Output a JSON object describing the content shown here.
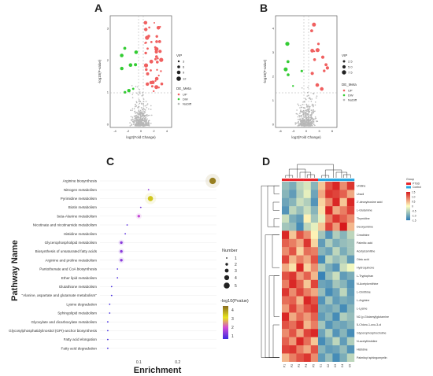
{
  "figure": {
    "panel_labels": [
      "A",
      "B",
      "C",
      "D"
    ]
  },
  "volcano_a": {
    "xlabel": "log2(Fold Change)",
    "ylabel": "-log10(P-value)",
    "x_ticks": [
      "-4",
      "-2",
      "0",
      "2",
      "4"
    ],
    "y_ticks": [
      "0",
      "1",
      "2",
      "3"
    ],
    "legend": {
      "vip_title": "VIP",
      "vip_sizes": [
        "3",
        "6",
        "9",
        "12"
      ],
      "meta_title": "DE_Meta",
      "meta_items": [
        "UP",
        "DW",
        "NoDiff"
      ]
    },
    "colors": {
      "up": "#f06060",
      "down": "#33cc33",
      "nodiff": "#b8b8b8",
      "threshold": "#aaaaaa"
    }
  },
  "volcano_b": {
    "xlabel": "log2(Fold Change)",
    "ylabel": "-log10(P-value)",
    "x_ticks": [
      "-6",
      "-3",
      "0",
      "3",
      "6"
    ],
    "y_ticks": [
      "0",
      "1",
      "2",
      "3",
      "4"
    ],
    "legend": {
      "vip_title": "VIP",
      "vip_sizes": [
        "2.5",
        "5.0",
        "7.5"
      ],
      "meta_title": "DE_Meta",
      "meta_items": [
        "UP",
        "DW",
        "NoDiff"
      ]
    }
  },
  "pathway_chart": {
    "ylabel": "Pathway Name",
    "xlabel": "Enrichment",
    "x_ticks": [
      "0.1",
      "0.2"
    ],
    "legend_number_title": "Number",
    "legend_numbers": [
      "1",
      "2",
      "3",
      "4",
      "5"
    ],
    "legend_color_title": "-log10(Pvalue)",
    "legend_color_ticks": [
      "4",
      "3",
      "2",
      "1"
    ]
  },
  "chart_data": {
    "type": "scatter",
    "xlabel": "Enrichment",
    "ylabel": "Pathway Name",
    "xlim": [
      0,
      0.3
    ],
    "categories": [
      "Arginine biosynthesis",
      "Nitrogen metabolism",
      "Pyrimidine metabolism",
      "Biotin metabolism",
      "beta-Alanine metabolism",
      "Nicotinate and nicotinamide metabolism",
      "Histidine metabolism",
      "Glycerophospholipid metabolism",
      "Biosynthesis of unsaturated fatty acids",
      "Arginine and proline metabolism",
      "Pantothenate and CoA biosynthesis",
      "Ether lipid metabolism",
      "Glutathione metabolism",
      "\"Alanine, aspartate and glutamate metabolism\"",
      "Lysine degradation",
      "Sphingolipid metabolism",
      "Glyoxylate and dicarboxylate metabolism",
      "Glycosylphosphatidylinositol (GPI)-anchor biosynthesis",
      "Fatty acid elongation",
      "Fatty acid degradation"
    ],
    "enrichment": [
      0.29,
      0.125,
      0.13,
      0.105,
      0.1,
      0.07,
      0.065,
      0.055,
      0.055,
      0.055,
      0.045,
      0.045,
      0.03,
      0.03,
      0.025,
      0.025,
      0.02,
      0.02,
      0.02,
      0.02
    ],
    "number": [
      5,
      1,
      4,
      1,
      2,
      1,
      1,
      2,
      2,
      2,
      1,
      1,
      1,
      1,
      1,
      1,
      1,
      1,
      1,
      1
    ],
    "neglog10_pvalue": [
      4.6,
      1.6,
      3.8,
      1.3,
      2.0,
      1.1,
      1.1,
      1.5,
      1.5,
      1.5,
      1.0,
      1.0,
      0.9,
      0.9,
      0.9,
      0.9,
      0.9,
      0.9,
      0.9,
      0.9
    ]
  },
  "heatmap": {
    "legend_group_title": "Group",
    "groups": [
      "PTSD",
      "Control"
    ],
    "group_colors": [
      "#e8262a",
      "#2aa8e0"
    ],
    "scale_ticks": [
      "1.5",
      "1.0",
      "0.5",
      "0",
      "-0.5",
      "-1.0",
      "-1.5"
    ],
    "column_labels": [
      "P1",
      "P2",
      "P3",
      "P4",
      "P5",
      "C1",
      "C2",
      "C3",
      "C4",
      "C5"
    ],
    "row_labels": [
      "Uridine",
      "Uracil",
      "2'-deoxyinosine acid",
      "L-Glutamine",
      "Thymidine",
      "Deoxyuridine",
      "Creatinine",
      "Palmitic acid",
      "Acetylcarnitine",
      "Oleic acid",
      "Hydroquinone",
      "L-Tryptophan",
      "N-Acetylornithine",
      "L-Ornithine",
      "L-Arginine",
      "L-Lysine",
      "N2-(γ-Glutamyl)glutamine",
      "5-Chloro-1-oxo-3-ol",
      "Glycerophosphocholine",
      "N-acetylhistidine",
      "Histidine",
      "Palmitoyl sphingomyelin"
    ],
    "values": [
      [
        -0.8,
        -1.0,
        -0.5,
        -0.3,
        -0.9,
        0.4,
        1.2,
        1.5,
        0.8,
        1.4
      ],
      [
        -0.9,
        -1.2,
        -0.6,
        -0.2,
        -1.1,
        0.6,
        1.4,
        1.3,
        1.1,
        0.6
      ],
      [
        -1.1,
        -0.9,
        -0.4,
        -0.6,
        -1.3,
        0.3,
        0.8,
        1.5,
        0.4,
        1.5
      ],
      [
        -1.3,
        -0.5,
        -0.8,
        -0.4,
        -0.9,
        0.2,
        1.5,
        0.6,
        0.9,
        1.3
      ],
      [
        -0.4,
        -1.0,
        -1.2,
        0.1,
        -0.7,
        -0.2,
        0.9,
        1.4,
        1.1,
        0.8
      ],
      [
        -0.7,
        -0.8,
        -1.4,
        -0.5,
        -0.2,
        0.4,
        1.3,
        0.7,
        1.6,
        0.5
      ],
      [
        1.5,
        0.4,
        1.2,
        0.8,
        0.1,
        -0.7,
        -1.3,
        -0.6,
        -0.9,
        -0.5
      ],
      [
        1.1,
        0.9,
        0.6,
        1.4,
        0.3,
        -1.2,
        -0.6,
        -1.0,
        -0.8,
        -0.7
      ],
      [
        0.8,
        1.2,
        0.3,
        1.0,
        0.9,
        -0.9,
        -1.1,
        -0.5,
        -1.0,
        -0.7
      ],
      [
        1.3,
        0.5,
        0.9,
        0.6,
        1.2,
        -1.4,
        -0.5,
        -0.8,
        -0.6,
        -1.2
      ],
      [
        0.6,
        0.2,
        1.5,
        0.3,
        0.8,
        -0.6,
        -1.0,
        -1.3,
        -0.4,
        -0.1
      ],
      [
        1.2,
        1.4,
        0.7,
        1.1,
        0.5,
        -1.5,
        -0.8,
        -0.4,
        -1.2,
        -1.0
      ],
      [
        0.9,
        1.5,
        1.1,
        0.4,
        1.3,
        -1.1,
        -1.2,
        -0.7,
        -0.9,
        -1.3
      ],
      [
        1.4,
        0.8,
        1.3,
        0.9,
        0.6,
        -0.8,
        -1.4,
        -1.1,
        -0.5,
        -1.2
      ],
      [
        1.0,
        1.1,
        0.5,
        1.5,
        1.2,
        -1.3,
        -0.7,
        -1.2,
        -1.0,
        -1.1
      ],
      [
        0.7,
        1.3,
        0.8,
        1.2,
        1.4,
        -1.0,
        -1.1,
        -0.9,
        -1.4,
        -0.9
      ],
      [
        1.5,
        0.6,
        1.0,
        0.7,
        1.1,
        -1.2,
        -0.9,
        -1.4,
        -0.6,
        -0.8
      ],
      [
        1.2,
        1.0,
        1.4,
        0.5,
        0.9,
        -0.7,
        -1.3,
        -1.0,
        -1.1,
        -0.9
      ],
      [
        0.8,
        1.2,
        0.6,
        1.3,
        1.5,
        -1.1,
        -0.6,
        -1.3,
        -0.9,
        -1.4
      ],
      [
        1.1,
        0.7,
        1.5,
        1.0,
        0.4,
        -1.4,
        -1.0,
        -0.5,
        -1.2,
        -0.6
      ],
      [
        1.3,
        1.4,
        0.9,
        0.6,
        1.2,
        -0.9,
        -1.2,
        -1.1,
        -0.8,
        -1.3
      ],
      [
        0.5,
        0.9,
        1.2,
        1.4,
        0.8,
        -1.2,
        -0.8,
        -1.4,
        -1.0,
        -0.5
      ]
    ]
  }
}
